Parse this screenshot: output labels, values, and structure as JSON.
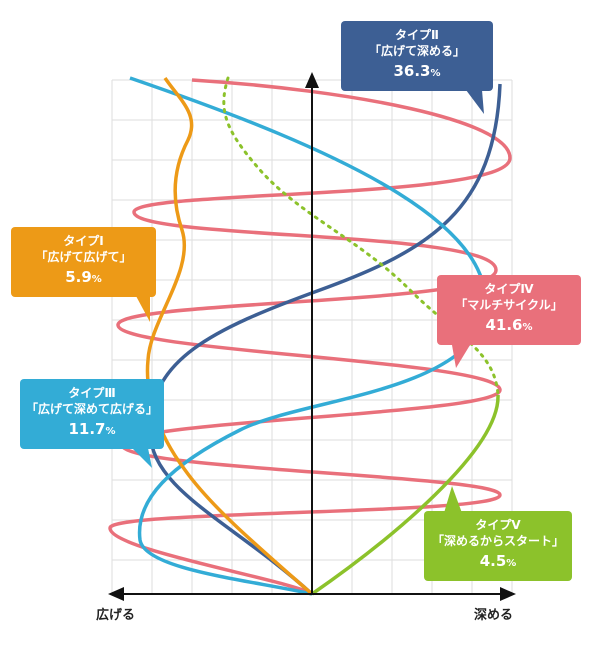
{
  "axis": {
    "left_label": "広げる",
    "right_label": "深める"
  },
  "colors": {
    "type1": "#ed9a17",
    "type2": "#3d5f94",
    "type3": "#33acd6",
    "type4": "#e9707b",
    "type5": "#8cc22b",
    "grid": "#dddddd",
    "axis": "#111111"
  },
  "types": [
    {
      "id": "type1",
      "name": "タイプⅠ",
      "desc": "「広げて広げて」",
      "pct": "5.9",
      "unit": "%"
    },
    {
      "id": "type2",
      "name": "タイプⅡ",
      "desc": "「広げて深める」",
      "pct": "36.3",
      "unit": "%"
    },
    {
      "id": "type3",
      "name": "タイプⅢ",
      "desc": "「広げて深めて広げる」",
      "pct": "11.7",
      "unit": "%"
    },
    {
      "id": "type4",
      "name": "タイプⅣ",
      "desc": "「マルチサイクル」",
      "pct": "41.6",
      "unit": "%"
    },
    {
      "id": "type5",
      "name": "タイプⅤ",
      "desc": "「深めるからスタート」",
      "pct": "4.5",
      "unit": "%"
    }
  ]
}
